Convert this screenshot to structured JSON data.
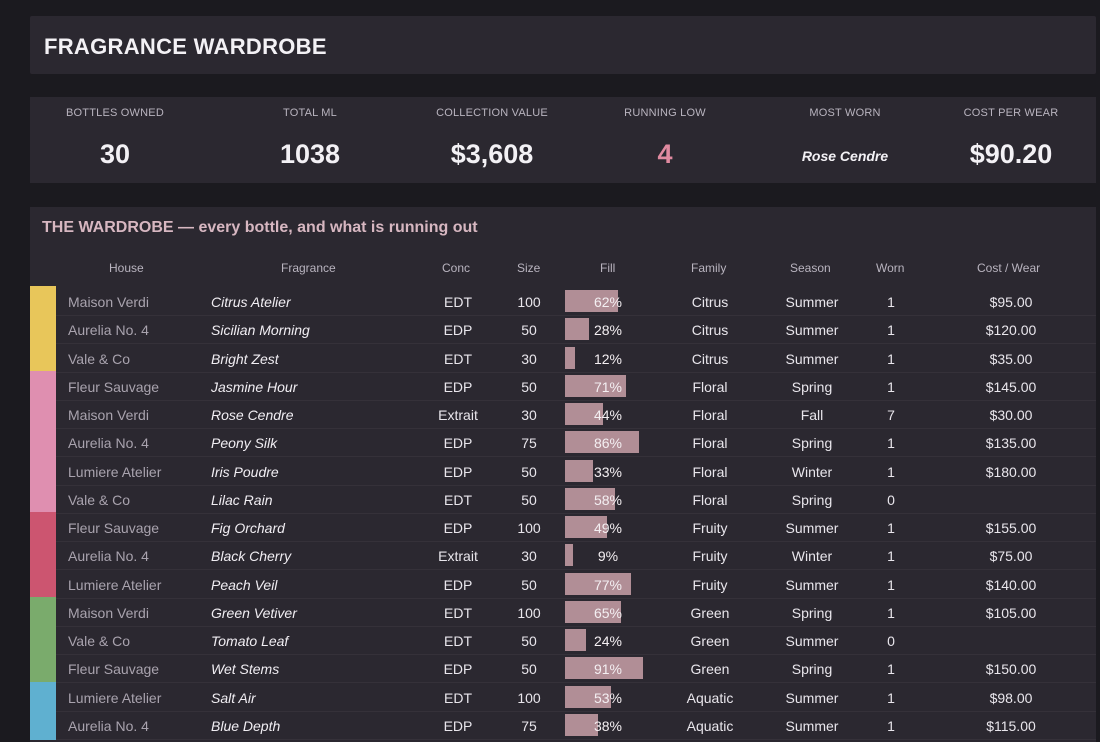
{
  "app": {
    "title": "FRAGRANCE WARDROBE"
  },
  "kpis": [
    {
      "label": "BOTTLES OWNED",
      "value": "30"
    },
    {
      "label": "TOTAL ML",
      "value": "1038"
    },
    {
      "label": "COLLECTION VALUE",
      "value": "$3,608"
    },
    {
      "label": "RUNNING LOW",
      "value": "4"
    },
    {
      "label": "MOST WORN",
      "value": "Rose Cendre"
    },
    {
      "label": "COST PER WEAR",
      "value": "$90.20"
    }
  ],
  "table": {
    "title": "THE WARDROBE — every bottle, and what is running out",
    "columns": [
      "House",
      "Fragrance",
      "Conc",
      "Size",
      "Fill",
      "Family",
      "Season",
      "Worn",
      "Cost / Wear"
    ],
    "family_colors": {
      "Citrus": "#e8c65a",
      "Floral": "#df8fb0",
      "Fruity": "#cc5570",
      "Green": "#7aab6c",
      "Aquatic": "#5fb0d0"
    },
    "rows": [
      {
        "house": "Maison Verdi",
        "fragrance": "Citrus Atelier",
        "conc": "EDT",
        "size": "100",
        "fill": 62,
        "fill_label": "62%",
        "family": "Citrus",
        "season": "Summer",
        "worn": "1",
        "cost": "$95.00"
      },
      {
        "house": "Aurelia No. 4",
        "fragrance": "Sicilian Morning",
        "conc": "EDP",
        "size": "50",
        "fill": 28,
        "fill_label": "28%",
        "family": "Citrus",
        "season": "Summer",
        "worn": "1",
        "cost": "$120.00"
      },
      {
        "house": "Vale & Co",
        "fragrance": "Bright Zest",
        "conc": "EDT",
        "size": "30",
        "fill": 12,
        "fill_label": "12%",
        "family": "Citrus",
        "season": "Summer",
        "worn": "1",
        "cost": "$35.00"
      },
      {
        "house": "Fleur Sauvage",
        "fragrance": "Jasmine Hour",
        "conc": "EDP",
        "size": "50",
        "fill": 71,
        "fill_label": "71%",
        "family": "Floral",
        "season": "Spring",
        "worn": "1",
        "cost": "$145.00"
      },
      {
        "house": "Maison Verdi",
        "fragrance": "Rose Cendre",
        "conc": "Extrait",
        "size": "30",
        "fill": 44,
        "fill_label": "44%",
        "family": "Floral",
        "season": "Fall",
        "worn": "7",
        "cost": "$30.00"
      },
      {
        "house": "Aurelia No. 4",
        "fragrance": "Peony Silk",
        "conc": "EDP",
        "size": "75",
        "fill": 86,
        "fill_label": "86%",
        "family": "Floral",
        "season": "Spring",
        "worn": "1",
        "cost": "$135.00"
      },
      {
        "house": "Lumiere Atelier",
        "fragrance": "Iris Poudre",
        "conc": "EDP",
        "size": "50",
        "fill": 33,
        "fill_label": "33%",
        "family": "Floral",
        "season": "Winter",
        "worn": "1",
        "cost": "$180.00"
      },
      {
        "house": "Vale & Co",
        "fragrance": "Lilac Rain",
        "conc": "EDT",
        "size": "50",
        "fill": 58,
        "fill_label": "58%",
        "family": "Floral",
        "season": "Spring",
        "worn": "0",
        "cost": ""
      },
      {
        "house": "Fleur Sauvage",
        "fragrance": "Fig Orchard",
        "conc": "EDP",
        "size": "100",
        "fill": 49,
        "fill_label": "49%",
        "family": "Fruity",
        "season": "Summer",
        "worn": "1",
        "cost": "$155.00"
      },
      {
        "house": "Aurelia No. 4",
        "fragrance": "Black Cherry",
        "conc": "Extrait",
        "size": "30",
        "fill": 9,
        "fill_label": "9%",
        "family": "Fruity",
        "season": "Winter",
        "worn": "1",
        "cost": "$75.00"
      },
      {
        "house": "Lumiere Atelier",
        "fragrance": "Peach Veil",
        "conc": "EDP",
        "size": "50",
        "fill": 77,
        "fill_label": "77%",
        "family": "Fruity",
        "season": "Summer",
        "worn": "1",
        "cost": "$140.00"
      },
      {
        "house": "Maison Verdi",
        "fragrance": "Green Vetiver",
        "conc": "EDT",
        "size": "100",
        "fill": 65,
        "fill_label": "65%",
        "family": "Green",
        "season": "Spring",
        "worn": "1",
        "cost": "$105.00"
      },
      {
        "house": "Vale & Co",
        "fragrance": "Tomato Leaf",
        "conc": "EDT",
        "size": "50",
        "fill": 24,
        "fill_label": "24%",
        "family": "Green",
        "season": "Summer",
        "worn": "0",
        "cost": ""
      },
      {
        "house": "Fleur Sauvage",
        "fragrance": "Wet Stems",
        "conc": "EDP",
        "size": "50",
        "fill": 91,
        "fill_label": "91%",
        "family": "Green",
        "season": "Spring",
        "worn": "1",
        "cost": "$150.00"
      },
      {
        "house": "Lumiere Atelier",
        "fragrance": "Salt Air",
        "conc": "EDT",
        "size": "100",
        "fill": 53,
        "fill_label": "53%",
        "family": "Aquatic",
        "season": "Summer",
        "worn": "1",
        "cost": "$98.00"
      },
      {
        "house": "Aurelia No. 4",
        "fragrance": "Blue Depth",
        "conc": "EDP",
        "size": "75",
        "fill": 38,
        "fill_label": "38%",
        "family": "Aquatic",
        "season": "Summer",
        "worn": "1",
        "cost": "$115.00"
      }
    ]
  }
}
